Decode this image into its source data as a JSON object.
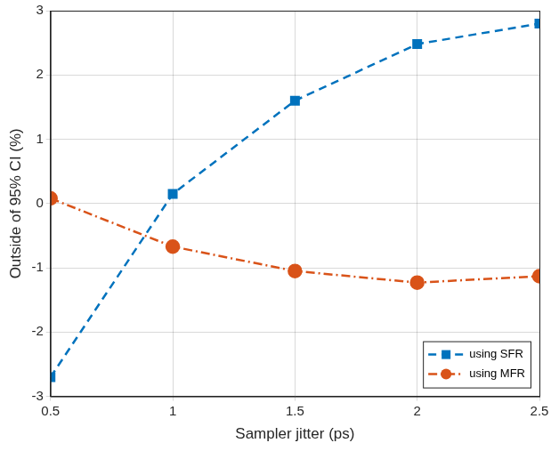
{
  "chart_data": {
    "type": "line",
    "x_label": "Sampler jitter (ps)",
    "y_label": "Outside of 95% CI (%)",
    "x": [
      0.5,
      1,
      1.5,
      2,
      2.5
    ],
    "series": [
      {
        "name": "using SFR",
        "color": "#0072BD",
        "marker": "square",
        "line_style": "dashed",
        "values": [
          -2.7,
          0.15,
          1.6,
          2.48,
          2.8
        ]
      },
      {
        "name": "using MFR",
        "color": "#D95319",
        "marker": "circle",
        "line_style": "dashdot",
        "values": [
          0.08,
          -0.67,
          -1.05,
          -1.23,
          -1.13
        ]
      }
    ],
    "xlim": [
      0.5,
      2.5
    ],
    "xticks": [
      0.5,
      1,
      1.5,
      2,
      2.5
    ],
    "ylim": [
      -3,
      3
    ],
    "yticks": [
      -3,
      -2,
      -1,
      0,
      1,
      2,
      3
    ],
    "grid": true,
    "legend": "lower right"
  }
}
